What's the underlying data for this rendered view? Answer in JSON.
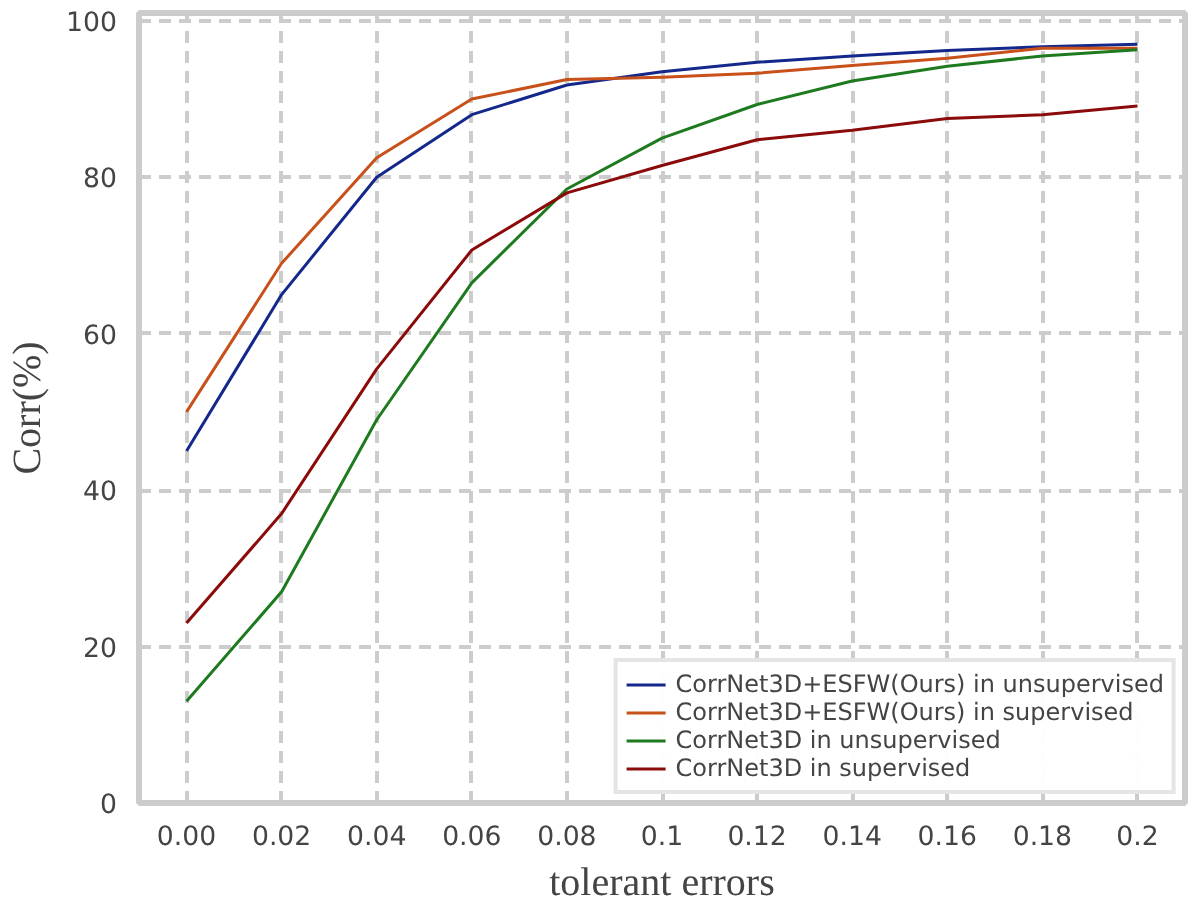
{
  "chart_data": {
    "type": "line",
    "xlabel": "tolerant errors",
    "ylabel": "Corr(%)",
    "categories": [
      "0.00",
      "0.02",
      "0.04",
      "0.06",
      "0.08",
      "0.1",
      "0.12",
      "0.14",
      "0.16",
      "0.18",
      "0.2"
    ],
    "series": [
      {
        "name": "CorrNet3D+ESFW(Ours) in unsupervised",
        "color": "#14288c",
        "values": [
          45,
          65,
          80,
          88,
          91.8,
          93.5,
          94.7,
          95.5,
          96.2,
          96.7,
          97
        ]
      },
      {
        "name": "CorrNet3D+ESFW(Ours) in supervised",
        "color": "#c8501a",
        "values": [
          50,
          69,
          82.5,
          90,
          92.5,
          92.8,
          93.3,
          94.3,
          95.2,
          96.5,
          96.5
        ]
      },
      {
        "name": "CorrNet3D in unsupervised",
        "color": "#1e7a1e",
        "values": [
          13,
          27,
          49,
          66.5,
          78.5,
          85,
          89.3,
          92.3,
          94.2,
          95.5,
          96.3
        ]
      },
      {
        "name": "CorrNet3D in supervised",
        "color": "#8b0a0a",
        "values": [
          23,
          37,
          55.5,
          70.7,
          78,
          81.5,
          84.8,
          86,
          87.5,
          88,
          89.1
        ]
      }
    ],
    "ylim": [
      0,
      101
    ],
    "yticks": [
      0,
      20,
      40,
      60,
      80,
      100
    ],
    "grid": true,
    "legend": "bottom right",
    "line_style": "solid",
    "marker": "none"
  }
}
